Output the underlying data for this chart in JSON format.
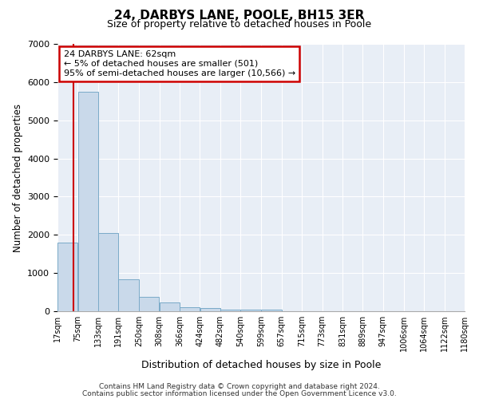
{
  "title1": "24, DARBYS LANE, POOLE, BH15 3ER",
  "title2": "Size of property relative to detached houses in Poole",
  "xlabel": "Distribution of detached houses by size in Poole",
  "ylabel": "Number of detached properties",
  "annotation_line1": "24 DARBYS LANE: 62sqm",
  "annotation_line2": "← 5% of detached houses are smaller (501)",
  "annotation_line3": "95% of semi-detached houses are larger (10,566) →",
  "subject_size": 62,
  "bin_edges": [
    17,
    75,
    133,
    191,
    250,
    308,
    366,
    424,
    482,
    540,
    599,
    657,
    715,
    773,
    831,
    889,
    947,
    1006,
    1064,
    1122,
    1180
  ],
  "bar_heights": [
    1800,
    5750,
    2050,
    830,
    370,
    230,
    110,
    75,
    50,
    45,
    35,
    10,
    5,
    3,
    2,
    2,
    1,
    1,
    1,
    1
  ],
  "bar_color": "#c9d9ea",
  "bar_edgecolor": "#7aaac8",
  "subject_line_color": "#cc0000",
  "annotation_box_edgecolor": "#cc0000",
  "background_color": "#e8eef6",
  "ylim": [
    0,
    7000
  ],
  "yticks": [
    0,
    1000,
    2000,
    3000,
    4000,
    5000,
    6000,
    7000
  ],
  "footer1": "Contains HM Land Registry data © Crown copyright and database right 2024.",
  "footer2": "Contains public sector information licensed under the Open Government Licence v3.0."
}
